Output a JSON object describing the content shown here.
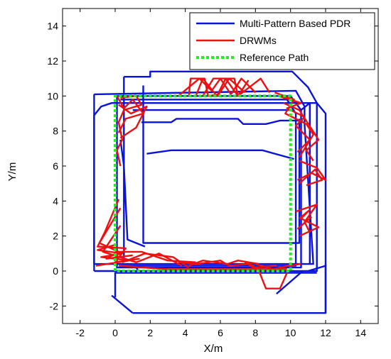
{
  "chart_data": {
    "type": "line",
    "title": "",
    "xlabel": "X/m",
    "ylabel": "Y/m",
    "xlim": [
      -3,
      15
    ],
    "ylim": [
      -3,
      15
    ],
    "xticks": [
      -2,
      0,
      2,
      4,
      6,
      8,
      10,
      12,
      14
    ],
    "yticks": [
      -2,
      0,
      2,
      4,
      6,
      8,
      10,
      12,
      14
    ],
    "grid": false,
    "legend_position": "top-right",
    "series": [
      {
        "name": "Multi-Pattern Based PDR",
        "color": "#0a14d8",
        "style": "solid",
        "paths": [
          [
            [
              -1.2,
              0.0
            ],
            [
              -1.2,
              8.9
            ],
            [
              -0.8,
              9.4
            ],
            [
              -0.2,
              9.6
            ],
            [
              11.5,
              9.6
            ],
            [
              11.5,
              0.0
            ],
            [
              -1.2,
              0.0
            ]
          ],
          [
            [
              -1.2,
              10.1
            ],
            [
              10.3,
              10.3
            ],
            [
              10.8,
              9.4
            ],
            [
              10.8,
              8.4
            ],
            [
              11.3,
              0.4
            ],
            [
              -1.2,
              0.4
            ]
          ],
          [
            [
              -1.2,
              0.4
            ],
            [
              -1.2,
              10.1
            ]
          ],
          [
            [
              0.5,
              11.1
            ],
            [
              2.0,
              11.1
            ],
            [
              2.0,
              11.4
            ],
            [
              10.1,
              11.4
            ],
            [
              11.0,
              10.5
            ],
            [
              11.5,
              9.6
            ]
          ],
          [
            [
              0.5,
              11.1
            ],
            [
              0.5,
              0.5
            ]
          ],
          [
            [
              0.0,
              -1.5
            ],
            [
              0.0,
              -0.1
            ],
            [
              11.5,
              -0.1
            ]
          ],
          [
            [
              1.0,
              -2.4
            ],
            [
              -0.2,
              -1.4
            ]
          ],
          [
            [
              1.0,
              -2.4
            ],
            [
              12.0,
              -2.4
            ],
            [
              12.0,
              0.4
            ]
          ],
          [
            [
              1.6,
              10.6
            ],
            [
              1.6,
              1.6
            ],
            [
              10.5,
              1.6
            ],
            [
              10.5,
              8.7
            ]
          ],
          [
            [
              0.1,
              10.0
            ],
            [
              10.0,
              10.0
            ],
            [
              10.6,
              9.2
            ],
            [
              10.6,
              0.2
            ],
            [
              0.1,
              0.2
            ],
            [
              0.1,
              10.0
            ]
          ],
          [
            [
              0.3,
              9.8
            ],
            [
              9.8,
              9.8
            ],
            [
              10.3,
              9.0
            ],
            [
              10.3,
              0.3
            ],
            [
              0.3,
              0.3
            ]
          ],
          [
            [
              1.0,
              9.2
            ],
            [
              10.0,
              9.2
            ]
          ],
          [
            [
              1.5,
              8.5
            ],
            [
              3.2,
              8.5
            ],
            [
              3.5,
              8.7
            ],
            [
              7.0,
              8.7
            ],
            [
              7.3,
              8.4
            ],
            [
              8.6,
              8.4
            ],
            [
              9.4,
              8.6
            ],
            [
              10.7,
              8.6
            ]
          ],
          [
            [
              1.8,
              6.7
            ],
            [
              3.2,
              6.9
            ],
            [
              7.2,
              6.9
            ],
            [
              8.4,
              6.9
            ],
            [
              10.2,
              6.4
            ]
          ],
          [
            [
              0.3,
              7.5
            ],
            [
              0.5,
              6.0
            ],
            [
              0.7,
              1.8
            ],
            [
              1.7,
              1.4
            ]
          ],
          [
            [
              10.6,
              9.2
            ],
            [
              11.1,
              9.6
            ],
            [
              11.1,
              0.4
            ]
          ],
          [
            [
              11.0,
              0.0
            ],
            [
              12.0,
              0.3
            ],
            [
              12.0,
              -2.4
            ]
          ],
          [
            [
              11.5,
              9.6
            ],
            [
              12.0,
              9.0
            ],
            [
              12.0,
              0.3
            ]
          ],
          [
            [
              9.2,
              -1.3
            ],
            [
              10.7,
              0.0
            ]
          ],
          [
            [
              1.2,
              0.2
            ],
            [
              1.4,
              -0.1
            ]
          ]
        ]
      },
      {
        "name": "DRWMs",
        "color": "#ee1010",
        "style": "solid",
        "paths": [
          [
            [
              0.3,
              9.9
            ],
            [
              1.2,
              10.0
            ],
            [
              1.5,
              9.5
            ],
            [
              0.5,
              9.2
            ],
            [
              0.2,
              8.5
            ],
            [
              0.4,
              7.5
            ],
            [
              0.1,
              6.9
            ],
            [
              0.3,
              6.0
            ]
          ],
          [
            [
              0.1,
              10.0
            ],
            [
              0.5,
              9.3
            ],
            [
              1.0,
              9.8
            ],
            [
              1.6,
              9.0
            ],
            [
              0.6,
              8.7
            ],
            [
              0.2,
              7.9
            ]
          ],
          [
            [
              0.2,
              9.5
            ],
            [
              0.9,
              9.0
            ],
            [
              1.8,
              9.4
            ],
            [
              1.2,
              8.2
            ],
            [
              0.3,
              7.6
            ]
          ],
          [
            [
              3.6,
              10.0
            ],
            [
              4.8,
              11.0
            ],
            [
              5.5,
              10.3
            ],
            [
              6.0,
              11.0
            ],
            [
              6.6,
              10.1
            ],
            [
              7.2,
              11.0
            ],
            [
              8.0,
              10.2
            ]
          ],
          [
            [
              4.6,
              10.0
            ],
            [
              5.0,
              11.0
            ],
            [
              5.8,
              10.0
            ],
            [
              6.3,
              11.0
            ],
            [
              7.0,
              10.0
            ],
            [
              7.6,
              10.9
            ]
          ],
          [
            [
              4.2,
              10.0
            ],
            [
              4.3,
              11.0
            ],
            [
              5.1,
              11.0
            ],
            [
              5.3,
              10.0
            ],
            [
              5.9,
              10.1
            ],
            [
              6.5,
              11.0
            ],
            [
              7.4,
              10.2
            ]
          ],
          [
            [
              5.0,
              10.0
            ],
            [
              5.6,
              11.0
            ],
            [
              6.8,
              11.0
            ],
            [
              7.0,
              10.0
            ],
            [
              8.3,
              11.0
            ],
            [
              8.8,
              10.2
            ]
          ],
          [
            [
              9.3,
              10.0
            ],
            [
              10.6,
              9.6
            ],
            [
              9.8,
              9.3
            ],
            [
              10.8,
              8.8
            ],
            [
              10.3,
              8.3
            ],
            [
              11.1,
              7.5
            ],
            [
              10.4,
              6.8
            ]
          ],
          [
            [
              9.1,
              10.2
            ],
            [
              10.2,
              9.8
            ],
            [
              9.7,
              9.0
            ],
            [
              10.9,
              8.4
            ],
            [
              11.3,
              7.8
            ],
            [
              10.5,
              6.5
            ]
          ],
          [
            [
              9.6,
              9.6
            ],
            [
              10.5,
              9.2
            ],
            [
              11.6,
              7.5
            ],
            [
              10.9,
              6.9
            ],
            [
              11.3,
              6.3
            ]
          ],
          [
            [
              10.5,
              6.3
            ],
            [
              11.5,
              5.9
            ],
            [
              12.0,
              5.2
            ],
            [
              11.2,
              5.6
            ],
            [
              10.4,
              5.2
            ]
          ],
          [
            [
              10.5,
              5.0
            ],
            [
              11.4,
              5.8
            ],
            [
              11.8,
              5.2
            ],
            [
              10.9,
              4.9
            ]
          ],
          [
            [
              10.5,
              3.0
            ],
            [
              11.1,
              3.5
            ],
            [
              10.6,
              3.0
            ],
            [
              11.6,
              2.5
            ],
            [
              10.5,
              2.0
            ]
          ],
          [
            [
              10.3,
              3.4
            ],
            [
              11.5,
              3.8
            ],
            [
              10.8,
              2.8
            ],
            [
              11.1,
              2.2
            ]
          ],
          [
            [
              10.4,
              2.4
            ],
            [
              11.2,
              3.1
            ]
          ],
          [
            [
              0.0,
              1.5
            ],
            [
              -1.0,
              1.2
            ],
            [
              0.4,
              1.0
            ],
            [
              -0.8,
              0.8
            ],
            [
              0.8,
              0.6
            ],
            [
              -1.1,
              0.3
            ]
          ],
          [
            [
              0.3,
              3.6
            ],
            [
              -0.9,
              1.6
            ],
            [
              0.2,
              1.1
            ],
            [
              -0.5,
              0.7
            ],
            [
              1.0,
              0.9
            ]
          ],
          [
            [
              0.2,
              4.1
            ],
            [
              -0.6,
              2.2
            ],
            [
              -1.0,
              1.4
            ],
            [
              0.6,
              1.3
            ],
            [
              0.0,
              0.5
            ],
            [
              1.4,
              0.7
            ]
          ],
          [
            [
              0.3,
              2.6
            ],
            [
              -0.7,
              1.1
            ],
            [
              1.2,
              0.5
            ],
            [
              2.5,
              1.0
            ],
            [
              3.8,
              0.3
            ]
          ],
          [
            [
              0.0,
              1.1
            ],
            [
              1.5,
              1.1
            ],
            [
              3.0,
              0.6
            ],
            [
              4.6,
              0.5
            ]
          ],
          [
            [
              0.4,
              0.5
            ],
            [
              1.7,
              1.0
            ],
            [
              3.3,
              0.8
            ],
            [
              4.2,
              0.2
            ]
          ],
          [
            [
              3.6,
              0.5
            ],
            [
              4.7,
              0.4
            ],
            [
              6.0,
              0.6
            ],
            [
              6.5,
              0.3
            ],
            [
              7.7,
              0.4
            ],
            [
              8.0,
              0.2
            ],
            [
              9.2,
              0.3
            ]
          ],
          [
            [
              4.2,
              0.3
            ],
            [
              5.0,
              0.6
            ],
            [
              6.4,
              0.4
            ],
            [
              7.0,
              0.6
            ],
            [
              8.2,
              0.4
            ]
          ],
          [
            [
              7.4,
              0.5
            ],
            [
              8.2,
              0.0
            ],
            [
              8.6,
              -1.0
            ],
            [
              9.4,
              -1.0
            ],
            [
              9.8,
              -0.1
            ]
          ],
          [
            [
              8.0,
              0.4
            ],
            [
              9.0,
              0.1
            ],
            [
              9.9,
              0.3
            ],
            [
              10.6,
              0.4
            ]
          ],
          [
            [
              0.2,
              0.3
            ],
            [
              3.0,
              0.1
            ],
            [
              6.0,
              0.1
            ],
            [
              9.8,
              0.1
            ]
          ]
        ]
      },
      {
        "name": "Reference Path",
        "color": "#22ee22",
        "style": "dotted",
        "paths": [
          [
            [
              0,
              0
            ],
            [
              0,
              10
            ],
            [
              10,
              10
            ],
            [
              10,
              0
            ],
            [
              0,
              0
            ]
          ]
        ]
      }
    ]
  }
}
